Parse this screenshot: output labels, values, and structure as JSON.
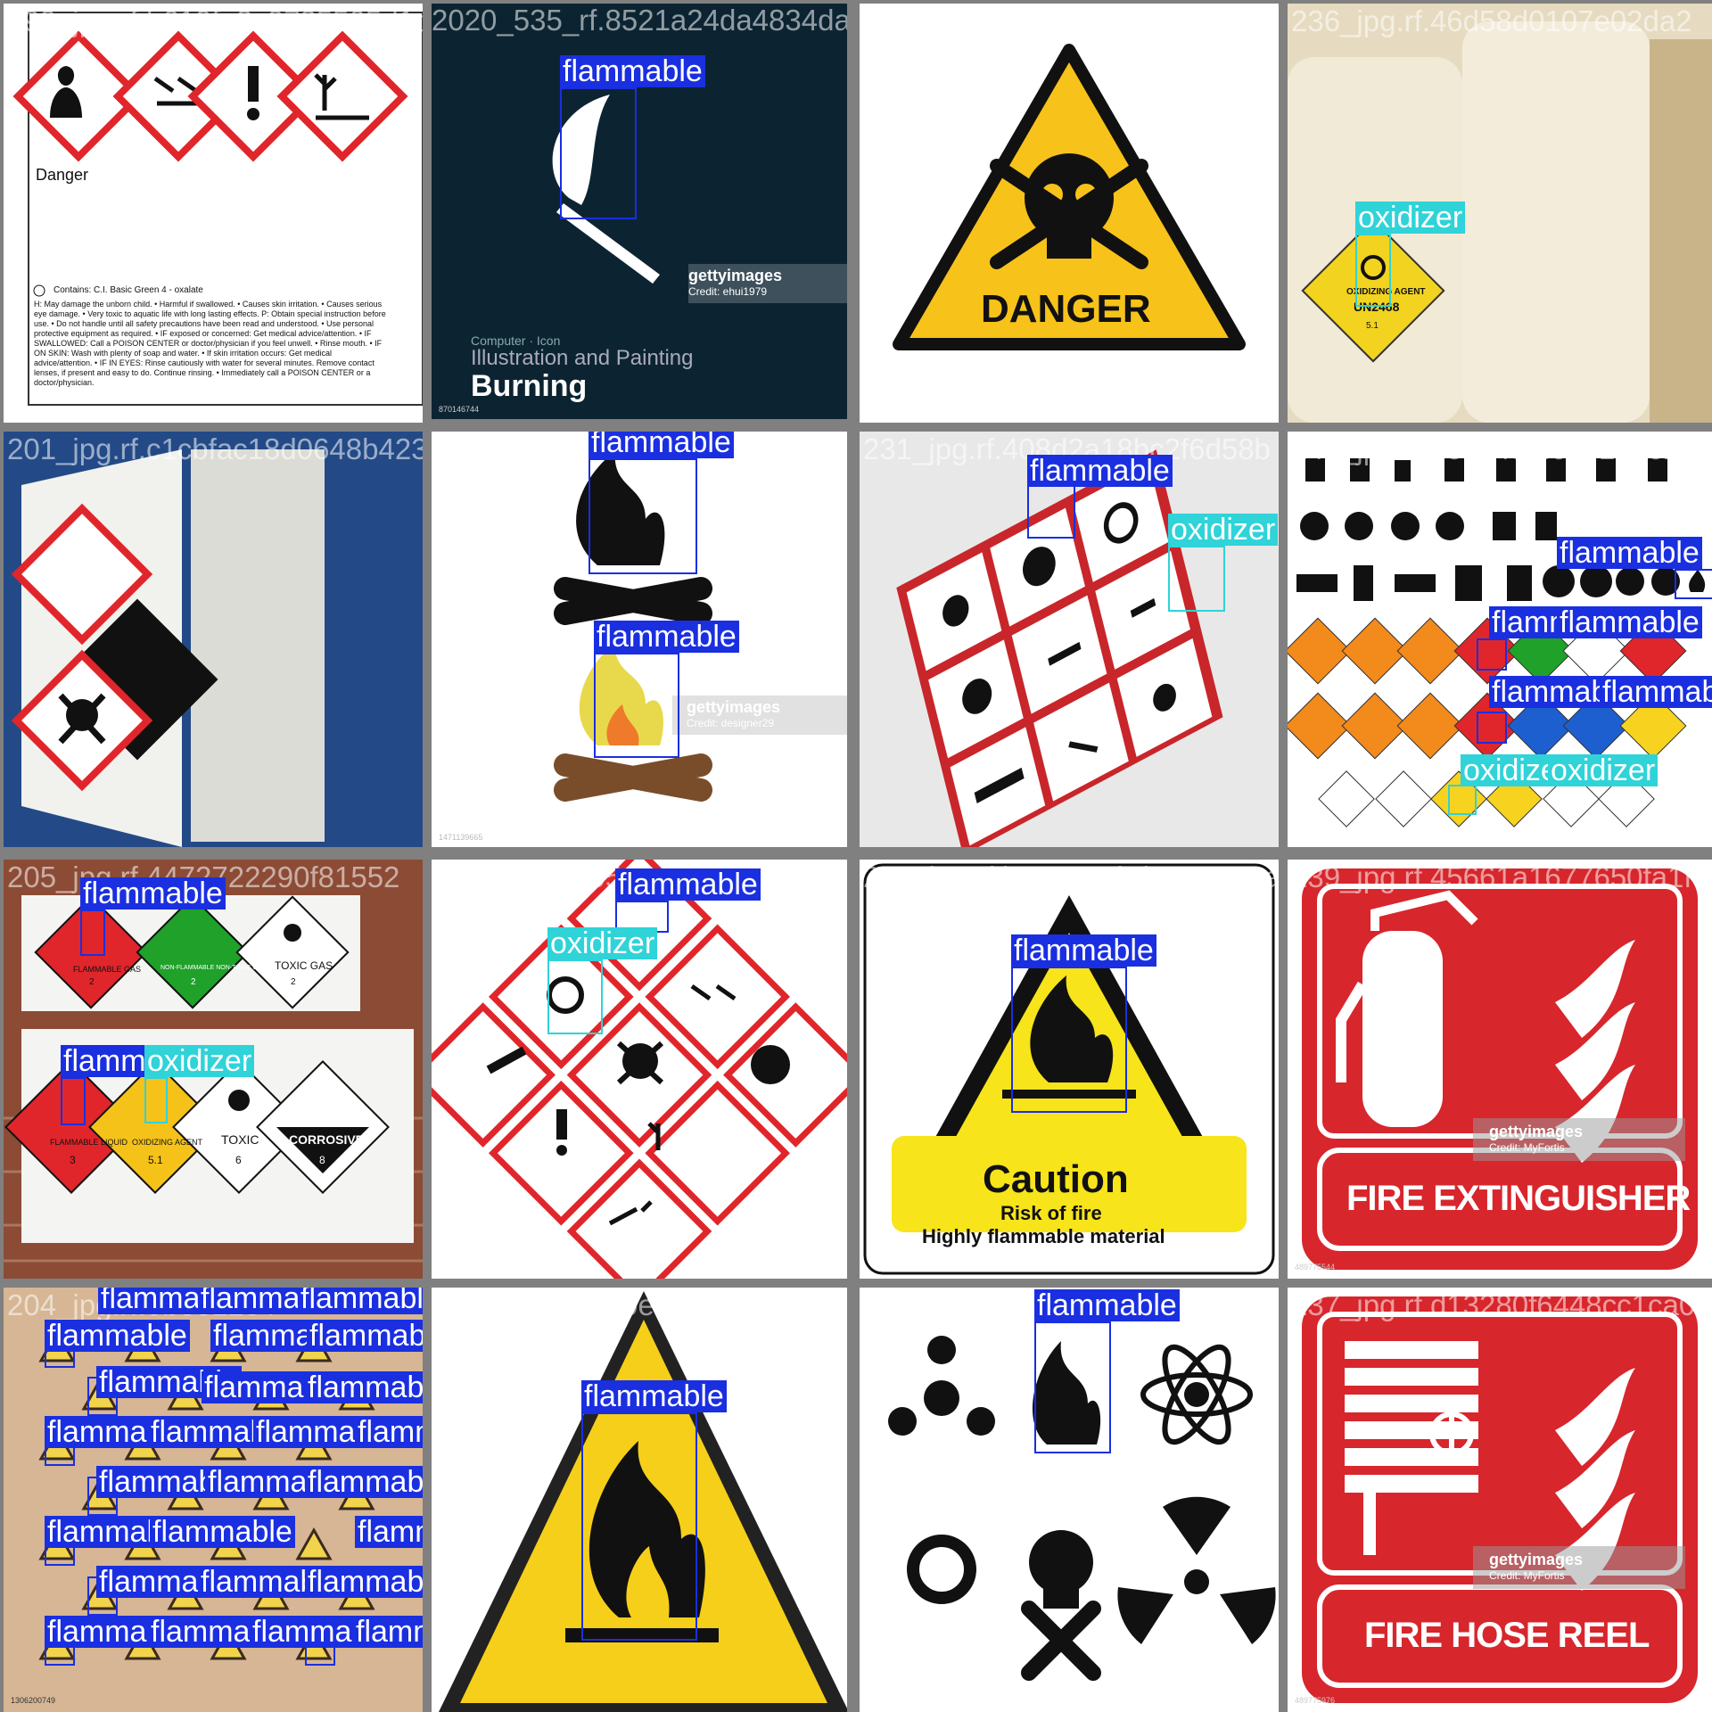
{
  "labels": {
    "flammable": "flammable",
    "oxidizer": "oxidizer"
  },
  "tiles": [
    {
      "filename": "199_jpg.rf.b619fa3c0725505d1dcc4b71d1a",
      "texts": {
        "danger": "Danger",
        "contains": "Contains: C.I. Basic Green 4 - oxalate",
        "hazard": "H: May damage the unborn child. • Harmful if swallowed. • Causes skin irritation. • Causes serious eye damage. • Very toxic to aquatic life with long lasting effects. P: Obtain special instruction before use. • Do not handle until all safety precautions have been read and understood. • Use personal protective equipment as required. • IF exposed or concerned: Get medical advice/attention. • IF SWALLOWED: Call a POISON CENTER or doctor/physician if you feel unwell. • Rinse mouth. • IF ON SKIN: Wash with plenty of soap and water. • If skin irritation occurs: Get medical advice/attention. • IF IN EYES: Rinse cautiously with water for several minutes. Remove contact lenses, if present and easy to do. Continue rinsing. • Immediately call a POISON CENTER or a doctor/physician."
      }
    },
    {
      "filename": "200_jpg.rf.85d1224da4834da4cbd0e19",
      "texts": {
        "overlap": "2020_535_rf.8521a24da4834da",
        "small": "Computer · Icon",
        "sub": "Illustration and Painting",
        "main": "Burning",
        "getty": "gettyimages",
        "credit": "Credit: ehui1979",
        "id": "870146744"
      }
    },
    {
      "filename": "218_jpg.rf.79e7489e3b43a37493b0",
      "texts": {
        "danger": "DANGER"
      }
    },
    {
      "filename": "236_jpg.rf.46d58d0107e02da2",
      "texts": {
        "placard": "OXIDIZING AGENT",
        "un": "UN2468",
        "cls": "5.1"
      }
    },
    {
      "filename": "201_jpg.rf.c1cbfac18d0648b423",
      "texts": {}
    },
    {
      "filename": "223_jpg.rf.50a1ca26da9137dc3df",
      "texts": {
        "getty": "gettyimages",
        "credit": "Credit: designer29",
        "id": "1471139665"
      }
    },
    {
      "filename": "231_jpg.rf.408d2a18bc2f6d58b",
      "texts": {}
    },
    {
      "filename": "241_jpg.rf.4c5445f49c6161c1dc",
      "texts": {}
    },
    {
      "filename": "205_jpg.rf.4472722290f81552",
      "texts": {
        "flamGas": "FLAMMABLE GAS",
        "nonFlam": "NON-FLAMMABLE NON-TOXIC GAS",
        "toxicGas": "TOXIC GAS",
        "flamLiq": "FLAMMABLE LIQUID",
        "oxAgent": "OXIDIZING AGENT",
        "toxic": "TOXIC",
        "corrosive": "CORROSIVE",
        "n2": "2",
        "n3": "3",
        "n51": "5.1",
        "n6": "6",
        "n8": "8"
      }
    },
    {
      "filename": "213_jpg.rf.c05e0d85b0d0c",
      "texts": {}
    },
    {
      "filename": "230_jpg.rf.b650441bd587e329a2",
      "texts": {
        "caution": "Caution",
        "risk": "Risk of fire",
        "material": "Highly flammable material"
      }
    },
    {
      "filename": "239_jpg.rf.45661a1677650fa1f",
      "texts": {
        "title": "FIRE EXTINGUISHER",
        "getty": "gettyimages",
        "credit": "Credit: MyFortis",
        "id": "489775544"
      }
    },
    {
      "filename": "204_jpg.rf.9b3e12c4",
      "texts": {
        "id": "1306200749"
      }
    },
    {
      "filename": "227_jpg.rf.1c30ec3b16248d2f1a246",
      "texts": {}
    },
    {
      "filename": "226_jpg.rf.c17d05b3701969e2",
      "texts": {}
    },
    {
      "filename": "237_jpg.rf.d13280f6448cc1ca0",
      "texts": {
        "title": "FIRE HOSE REEL",
        "getty": "gettyimages",
        "credit": "Credit: MyFortis",
        "id": "489775976"
      }
    }
  ],
  "colors": {
    "flammable": "#1a2fe0",
    "oxidizer": "#2fd3d8",
    "ghsRed": "#e0262b",
    "warnYellow": "#f7c21a",
    "fireRed": "#d7262c"
  }
}
